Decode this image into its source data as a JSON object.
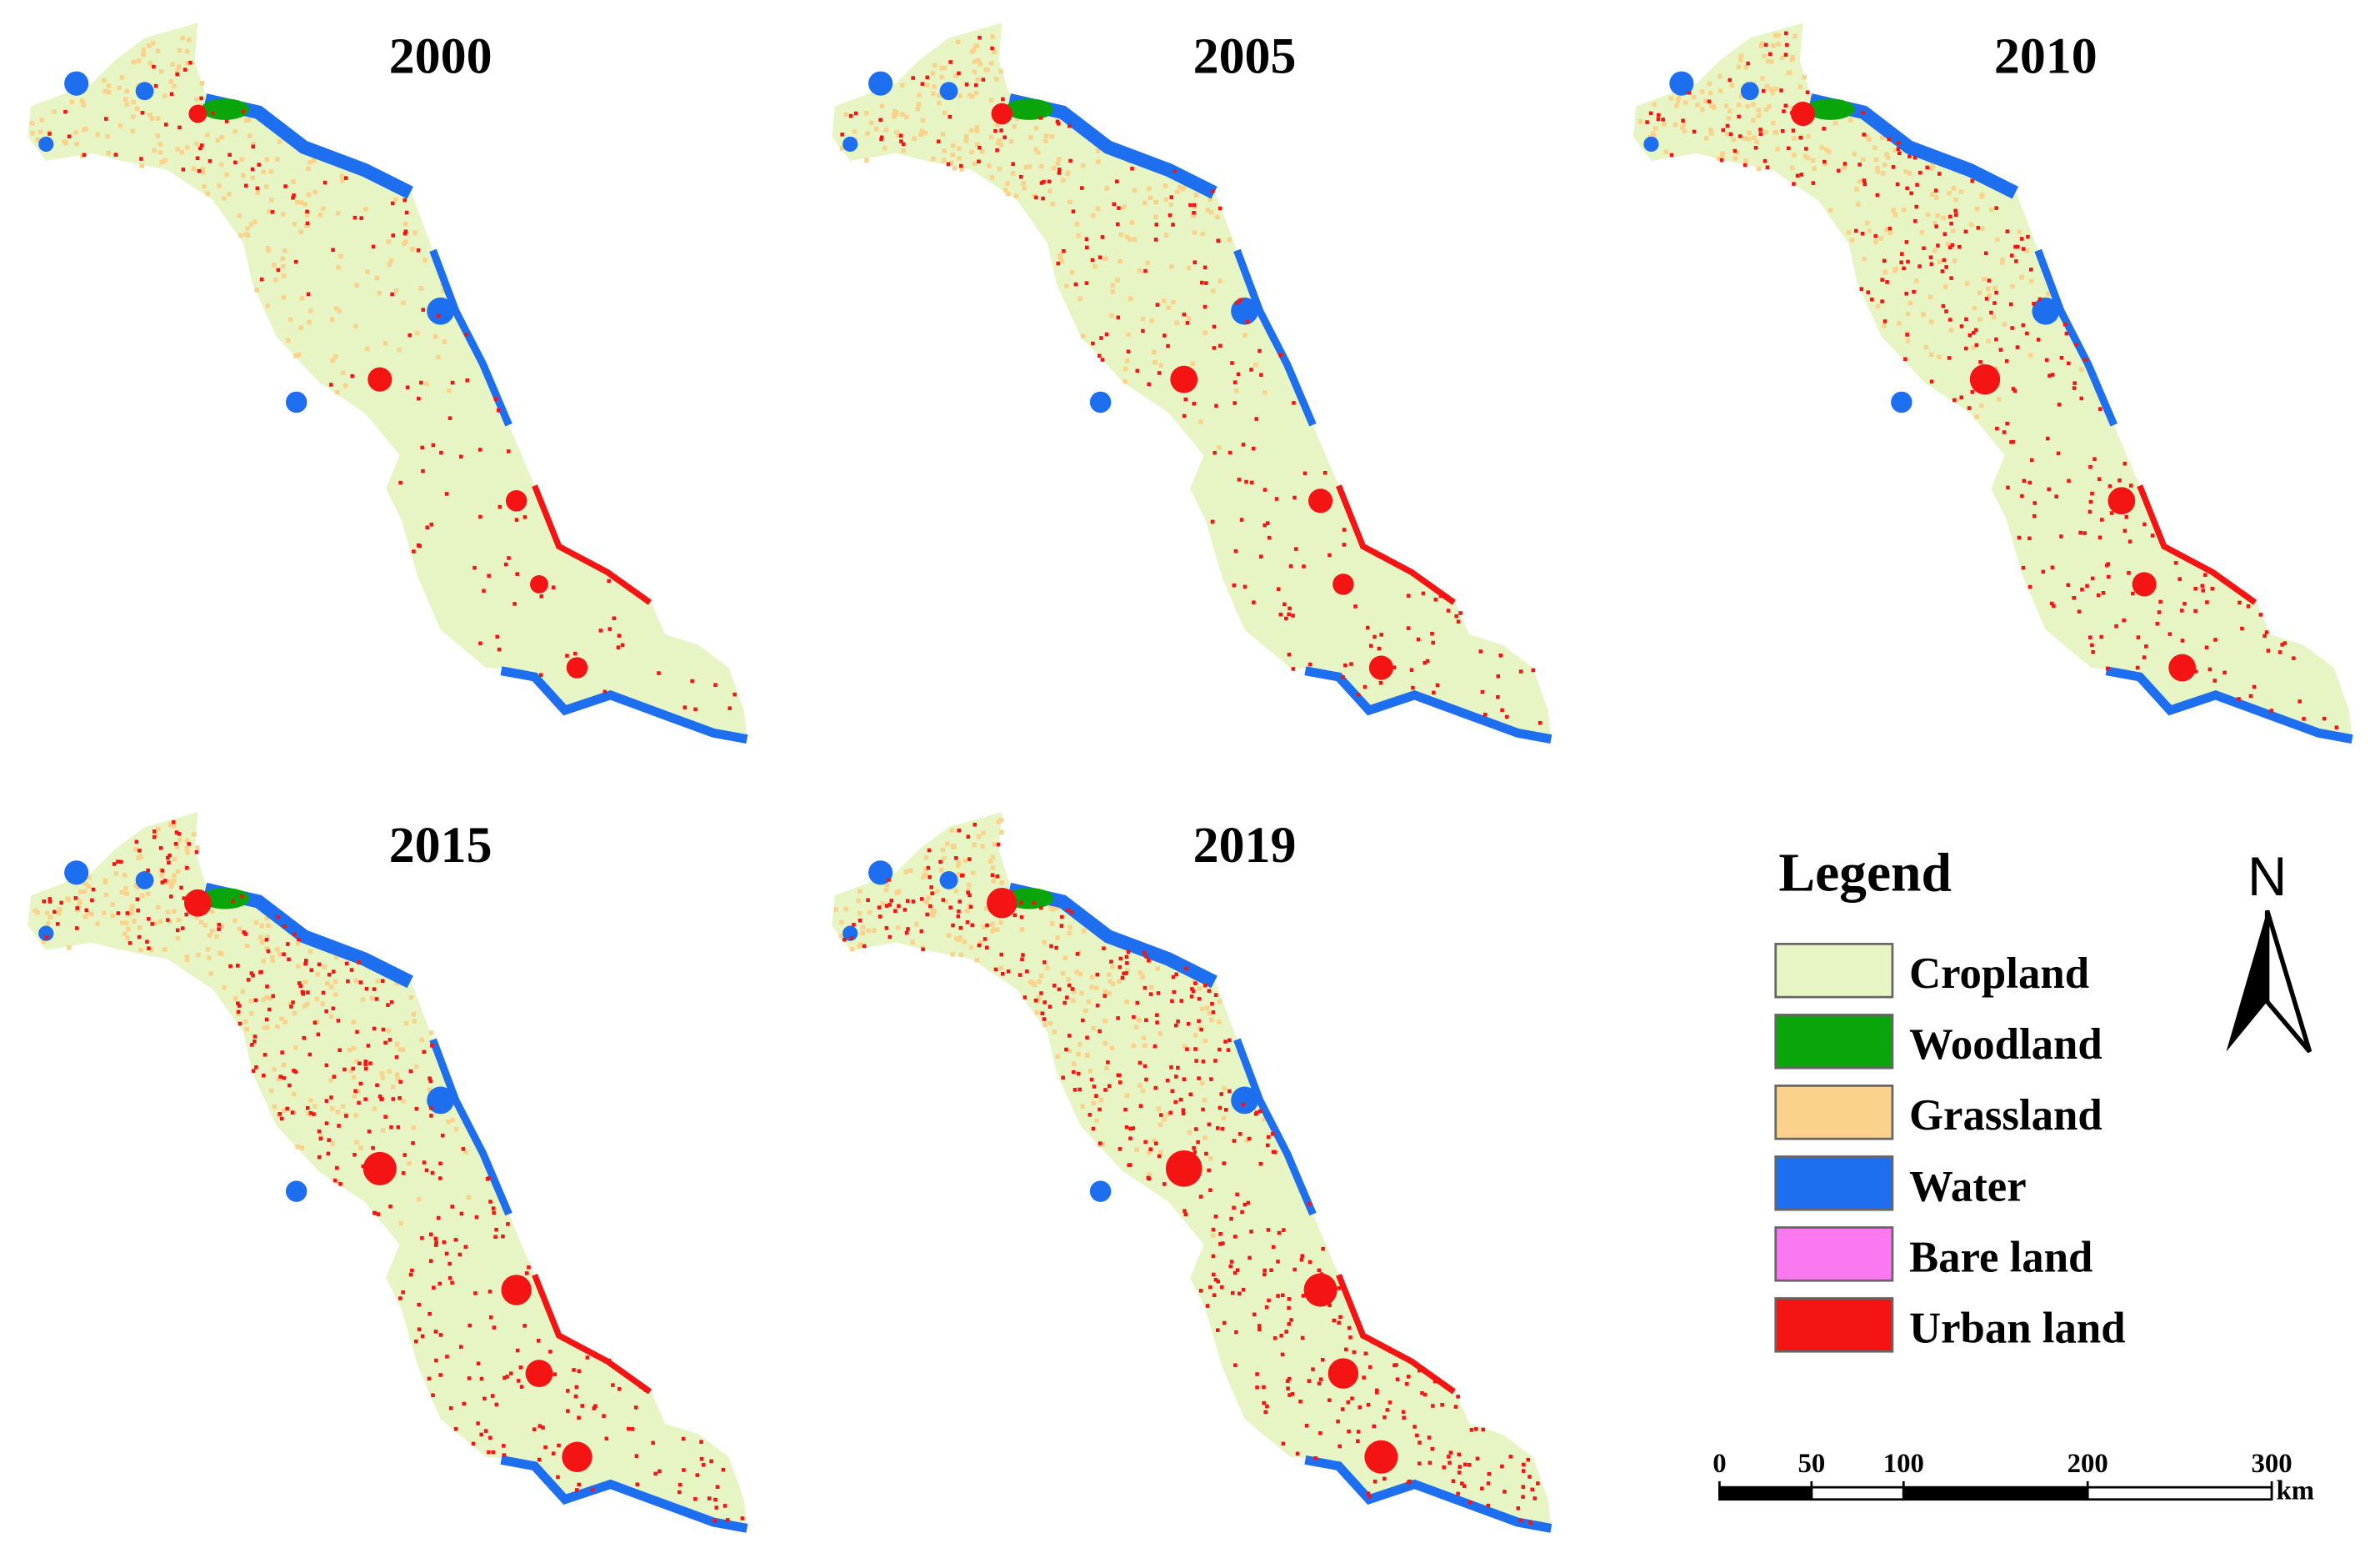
{
  "maps": [
    {
      "year": "2000"
    },
    {
      "year": "2005"
    },
    {
      "year": "2010"
    },
    {
      "year": "2015"
    },
    {
      "year": "2019"
    }
  ],
  "legend": {
    "title": "Legend",
    "items": [
      {
        "label": "Cropland",
        "color": "#e6f5c3"
      },
      {
        "label": "Woodland",
        "color": "#0aa50a"
      },
      {
        "label": "Grassland",
        "color": "#fad28c"
      },
      {
        "label": "Water",
        "color": "#1e6ef0"
      },
      {
        "label": "Bare land",
        "color": "#fa78f0"
      },
      {
        "label": "Urban land",
        "color": "#f51414"
      }
    ]
  },
  "north": "N",
  "scale_bar": {
    "ticks": [
      0,
      50,
      100,
      200,
      300
    ],
    "unit": "km"
  }
}
